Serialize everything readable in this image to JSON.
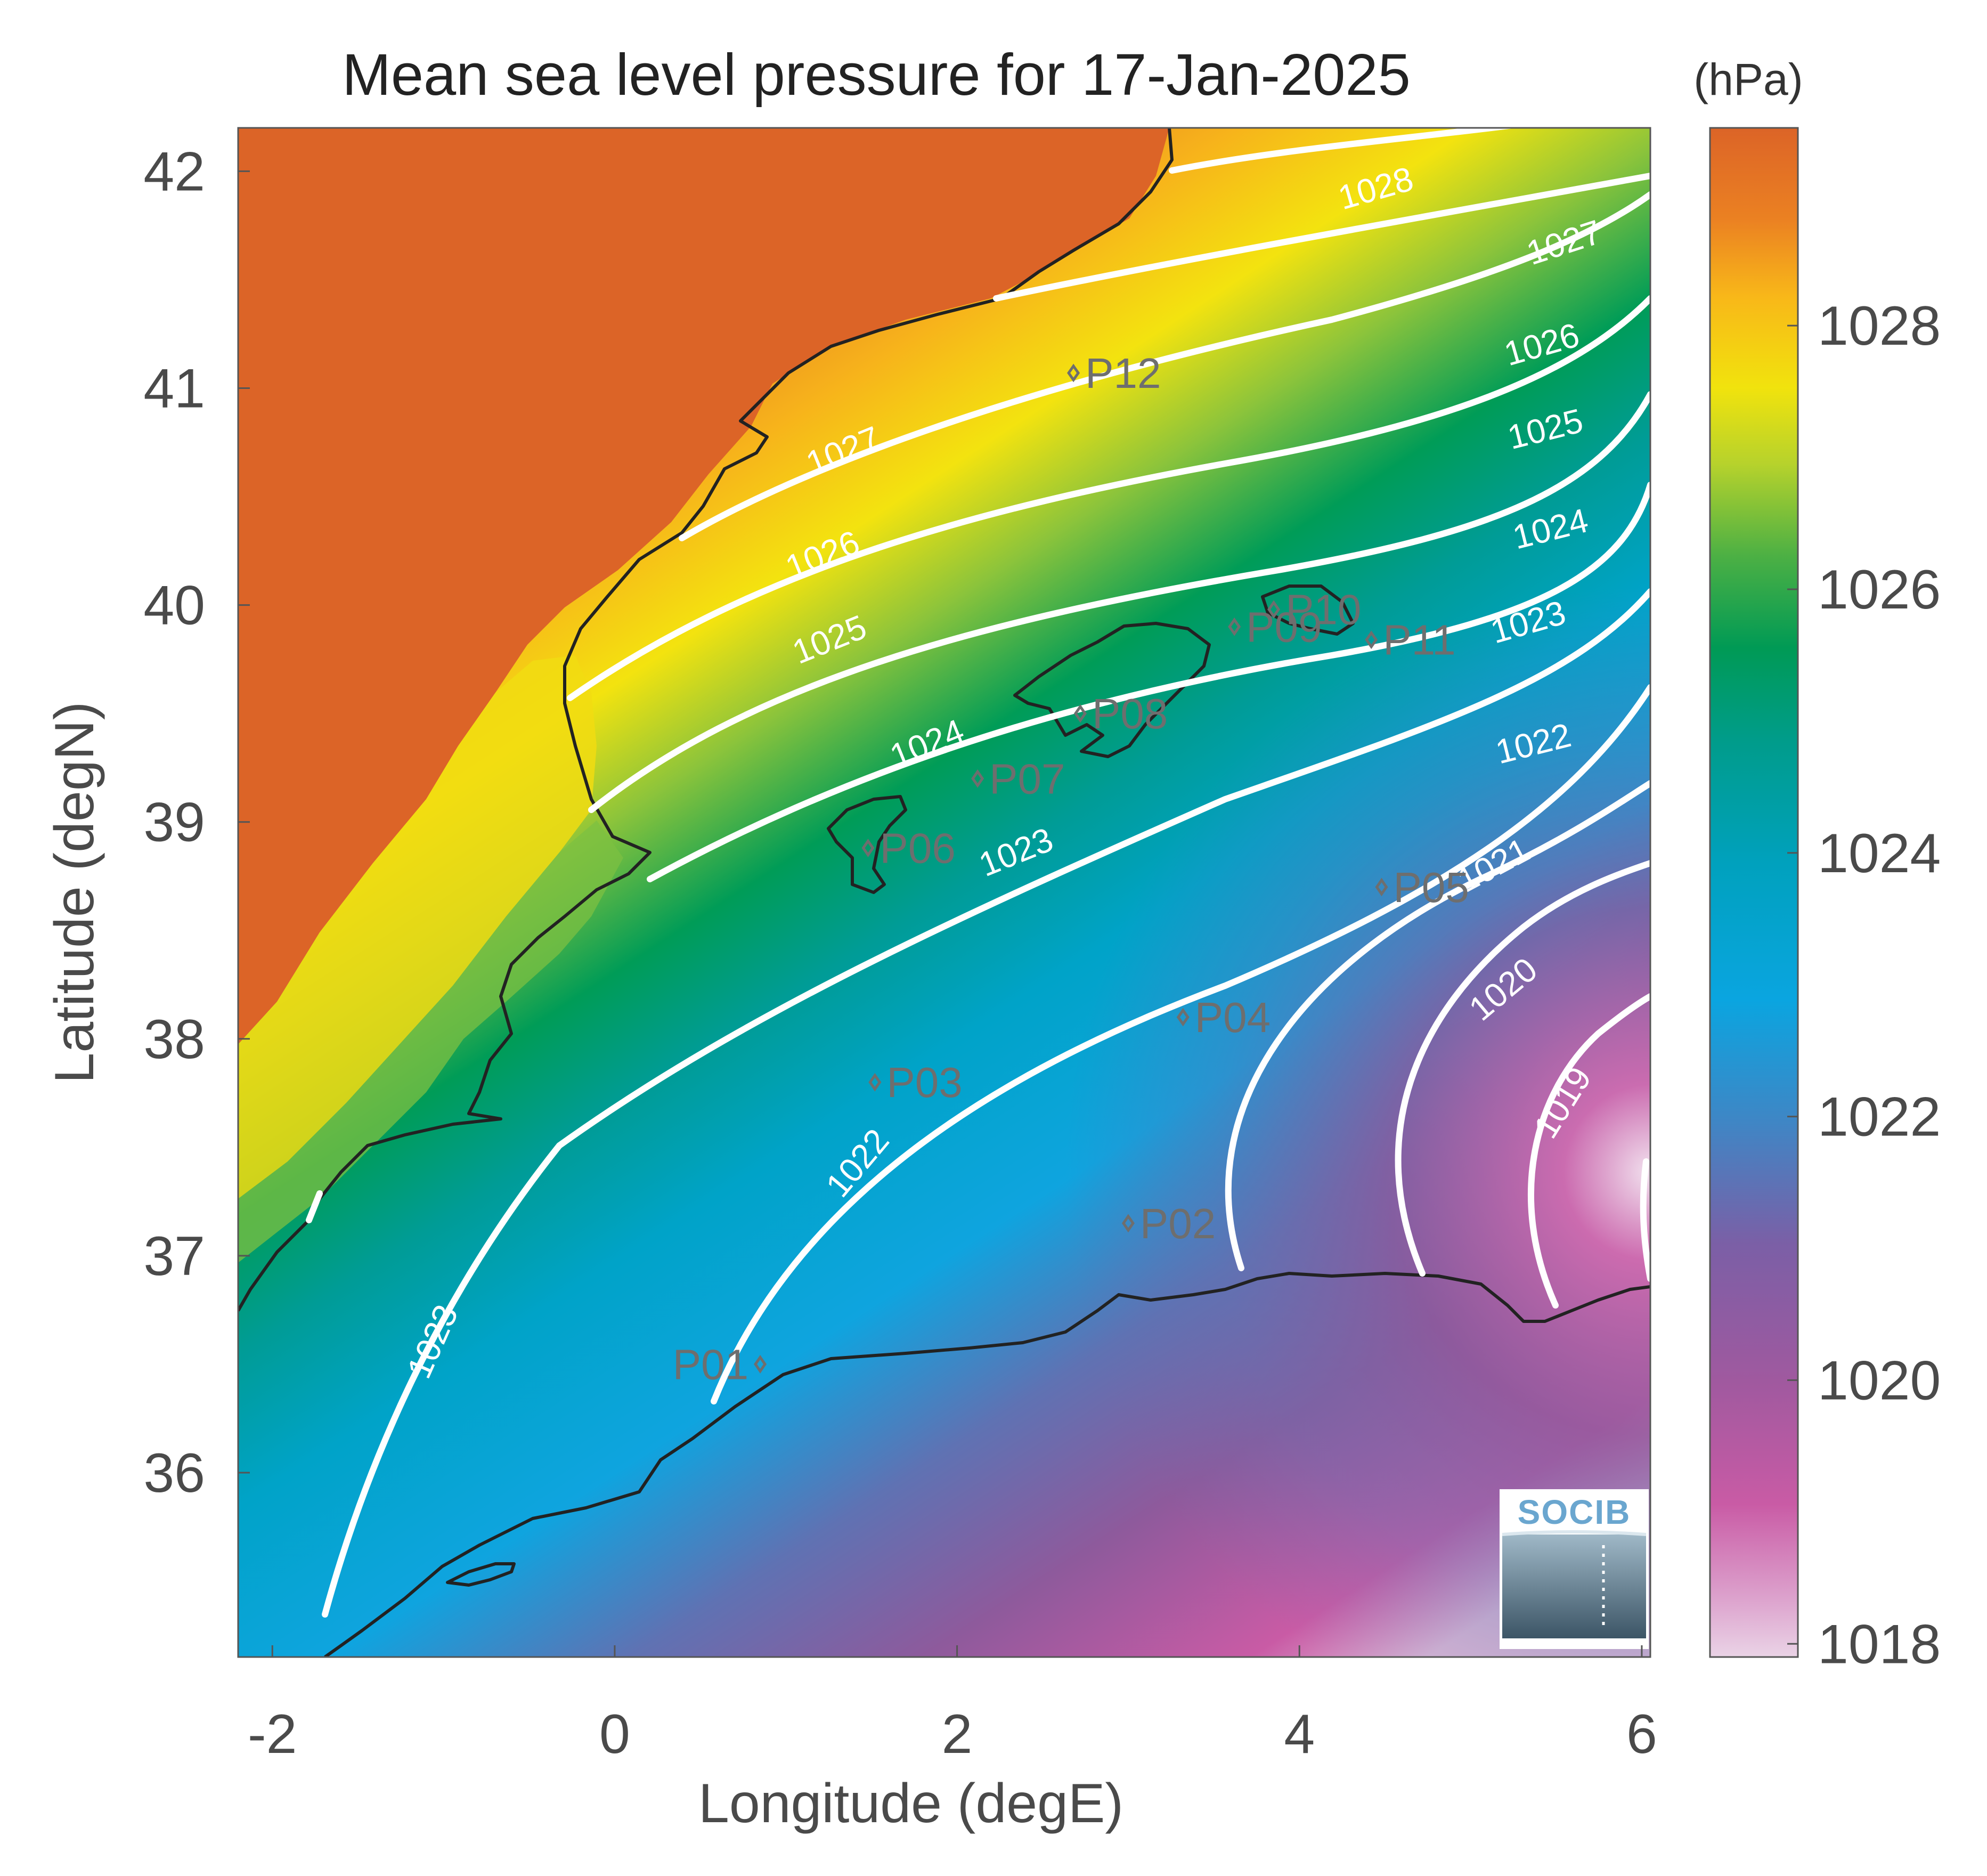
{
  "title": "Mean sea level pressure for 17-Jan-2025",
  "xlabel": "Longitude (degE)",
  "ylabel": "Latitude (degN)",
  "colorbar": {
    "unit": "(hPa)",
    "range": [
      1017.9,
      1029.5
    ],
    "ticks": [
      "1018",
      "1020",
      "1022",
      "1024",
      "1026",
      "1028"
    ],
    "tick_values": [
      1018,
      1020,
      1022,
      1024,
      1026,
      1028
    ],
    "colormap": "#dcb8d6 → #c95ba5 → #8e5a9c → #5f72b3 → #0fa4df → #009c96 → #009c57 → #8cc43b → #f3e30f → #f7b31b → #dc6427"
  },
  "chart_data": {
    "type": "heatmap",
    "title": "Mean sea level pressure for 17-Jan-2025",
    "xlabel": "Longitude (degE)",
    "ylabel": "Latitude (degN)",
    "xlim": [
      -2.2,
      6.05
    ],
    "ylim": [
      35.15,
      42.2
    ],
    "xticks": [
      "-2",
      "0",
      "2",
      "4",
      "6"
    ],
    "xtick_values": [
      -2,
      0,
      2,
      4,
      6
    ],
    "yticks": [
      "36",
      "37",
      "38",
      "39",
      "40",
      "41",
      "42"
    ],
    "ytick_values": [
      36,
      37,
      38,
      39,
      40,
      41,
      42
    ],
    "isobar_labels": [
      {
        "text": "1028",
        "lon": 4.45,
        "lat": 41.91,
        "angle": -16
      },
      {
        "text": "1027",
        "lon": 5.55,
        "lat": 41.66,
        "angle": -18
      },
      {
        "text": "1027",
        "lon": 1.34,
        "lat": 40.7,
        "angle": -22
      },
      {
        "text": "1026",
        "lon": 5.42,
        "lat": 41.19,
        "angle": -16
      },
      {
        "text": "1026",
        "lon": 1.22,
        "lat": 40.22,
        "angle": -22
      },
      {
        "text": "1025",
        "lon": 5.44,
        "lat": 40.8,
        "angle": -14
      },
      {
        "text": "1025",
        "lon": 1.26,
        "lat": 39.83,
        "angle": -22
      },
      {
        "text": "1024",
        "lon": 5.47,
        "lat": 40.34,
        "angle": -14
      },
      {
        "text": "1024",
        "lon": 1.83,
        "lat": 39.35,
        "angle": -22
      },
      {
        "text": "1023",
        "lon": 5.34,
        "lat": 39.91,
        "angle": -16
      },
      {
        "text": "1023",
        "lon": 2.35,
        "lat": 38.85,
        "angle": -22
      },
      {
        "text": "1023",
        "lon": -1.05,
        "lat": 36.6,
        "angle": -66
      },
      {
        "text": "1022",
        "lon": 5.37,
        "lat": 39.35,
        "angle": -14
      },
      {
        "text": "1022",
        "lon": 1.43,
        "lat": 37.42,
        "angle": -50
      },
      {
        "text": "1021",
        "lon": 5.14,
        "lat": 38.79,
        "angle": -28
      },
      {
        "text": "1020",
        "lon": 5.2,
        "lat": 38.22,
        "angle": -40
      },
      {
        "text": "1019",
        "lon": 5.55,
        "lat": 37.7,
        "angle": -58
      }
    ],
    "stations": [
      {
        "name": "P01",
        "lon": 0.85,
        "lat": 36.5
      },
      {
        "name": "P02",
        "lon": 3.0,
        "lat": 37.15
      },
      {
        "name": "P03",
        "lon": 1.52,
        "lat": 37.8
      },
      {
        "name": "P04",
        "lon": 3.32,
        "lat": 38.1
      },
      {
        "name": "P05",
        "lon": 4.48,
        "lat": 38.7
      },
      {
        "name": "P06",
        "lon": 1.48,
        "lat": 38.88
      },
      {
        "name": "P07",
        "lon": 2.12,
        "lat": 39.2
      },
      {
        "name": "P08",
        "lon": 2.72,
        "lat": 39.5
      },
      {
        "name": "P09",
        "lon": 3.62,
        "lat": 39.9
      },
      {
        "name": "P10",
        "lon": 3.85,
        "lat": 39.98
      },
      {
        "name": "P11",
        "lon": 4.42,
        "lat": 39.84
      },
      {
        "name": "P12",
        "lon": 2.68,
        "lat": 41.07
      }
    ],
    "grid": false
  },
  "logo": {
    "text": "SOCIB"
  }
}
